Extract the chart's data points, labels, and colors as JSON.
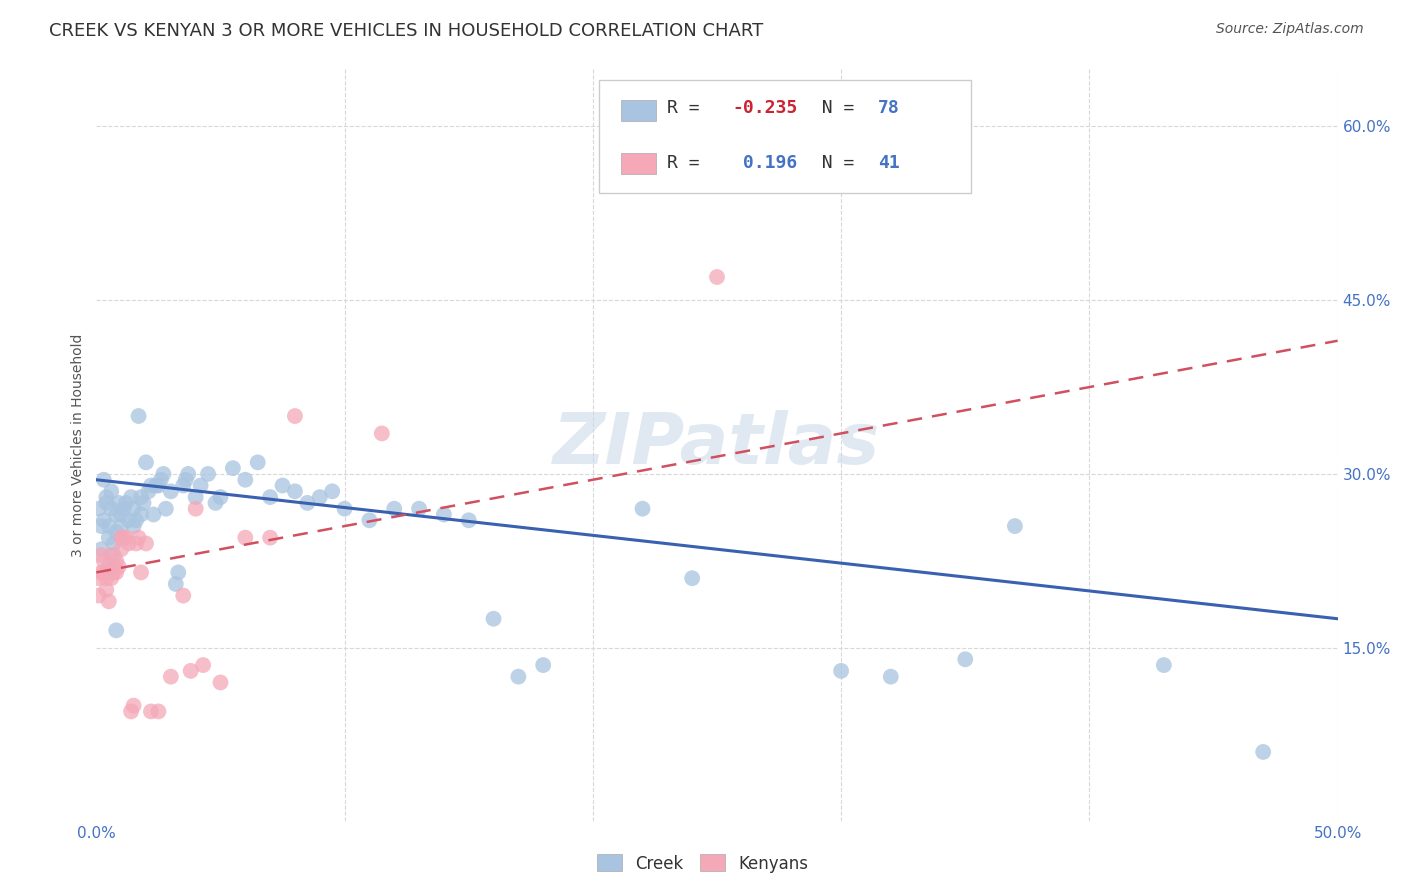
{
  "title": "CREEK VS KENYAN 3 OR MORE VEHICLES IN HOUSEHOLD CORRELATION CHART",
  "source": "Source: ZipAtlas.com",
  "ylabel": "3 or more Vehicles in Household",
  "xlim": [
    0.0,
    0.5
  ],
  "ylim": [
    0.0,
    0.65
  ],
  "xticks": [
    0.0,
    0.1,
    0.2,
    0.3,
    0.4,
    0.5
  ],
  "yticks": [
    0.15,
    0.3,
    0.45,
    0.6
  ],
  "xticklabels": [
    "0.0%",
    "",
    "",
    "",
    "",
    "50.0%"
  ],
  "yticklabels": [
    "15.0%",
    "30.0%",
    "45.0%",
    "60.0%"
  ],
  "creek_color": "#a8c4e0",
  "kenyan_color": "#f4a8b8",
  "creek_line_color": "#3a60b0",
  "kenyan_line_color": "#d05060",
  "creek_R": -0.235,
  "creek_N": 78,
  "kenyan_R": 0.196,
  "kenyan_N": 41,
  "background_color": "#ffffff",
  "grid_color": "#d8d8d8",
  "creek_line_start_y": 0.295,
  "creek_line_end_y": 0.175,
  "kenyan_line_start_y": 0.215,
  "kenyan_line_end_y": 0.415,
  "creek_x": [
    0.001,
    0.002,
    0.002,
    0.003,
    0.004,
    0.005,
    0.005,
    0.005,
    0.006,
    0.007,
    0.007,
    0.008,
    0.008,
    0.009,
    0.01,
    0.01,
    0.01,
    0.011,
    0.012,
    0.013,
    0.014,
    0.015,
    0.015,
    0.016,
    0.017,
    0.018,
    0.018,
    0.019,
    0.02,
    0.021,
    0.022,
    0.023,
    0.024,
    0.025,
    0.026,
    0.027,
    0.028,
    0.03,
    0.032,
    0.033,
    0.035,
    0.036,
    0.037,
    0.04,
    0.042,
    0.045,
    0.048,
    0.05,
    0.055,
    0.06,
    0.065,
    0.07,
    0.075,
    0.08,
    0.085,
    0.09,
    0.095,
    0.1,
    0.11,
    0.12,
    0.13,
    0.14,
    0.15,
    0.16,
    0.17,
    0.18,
    0.22,
    0.24,
    0.3,
    0.32,
    0.35,
    0.37,
    0.43,
    0.47,
    0.003,
    0.004,
    0.006,
    0.008
  ],
  "creek_y": [
    0.27,
    0.255,
    0.235,
    0.26,
    0.28,
    0.22,
    0.245,
    0.255,
    0.27,
    0.23,
    0.24,
    0.25,
    0.265,
    0.275,
    0.245,
    0.255,
    0.265,
    0.27,
    0.275,
    0.26,
    0.28,
    0.27,
    0.255,
    0.26,
    0.35,
    0.265,
    0.28,
    0.275,
    0.31,
    0.285,
    0.29,
    0.265,
    0.29,
    0.29,
    0.295,
    0.3,
    0.27,
    0.285,
    0.205,
    0.215,
    0.29,
    0.295,
    0.3,
    0.28,
    0.29,
    0.3,
    0.275,
    0.28,
    0.305,
    0.295,
    0.31,
    0.28,
    0.29,
    0.285,
    0.275,
    0.28,
    0.285,
    0.27,
    0.26,
    0.27,
    0.27,
    0.265,
    0.26,
    0.175,
    0.125,
    0.135,
    0.27,
    0.21,
    0.13,
    0.125,
    0.14,
    0.255,
    0.135,
    0.06,
    0.295,
    0.275,
    0.285,
    0.165
  ],
  "kenyan_x": [
    0.001,
    0.001,
    0.002,
    0.002,
    0.003,
    0.003,
    0.004,
    0.004,
    0.005,
    0.005,
    0.006,
    0.006,
    0.007,
    0.007,
    0.008,
    0.008,
    0.009,
    0.01,
    0.01,
    0.011,
    0.012,
    0.013,
    0.014,
    0.015,
    0.016,
    0.017,
    0.018,
    0.02,
    0.022,
    0.025,
    0.03,
    0.035,
    0.038,
    0.04,
    0.043,
    0.05,
    0.06,
    0.07,
    0.08,
    0.115,
    0.25
  ],
  "kenyan_y": [
    0.21,
    0.195,
    0.215,
    0.23,
    0.225,
    0.215,
    0.2,
    0.21,
    0.19,
    0.215,
    0.21,
    0.23,
    0.215,
    0.22,
    0.225,
    0.215,
    0.22,
    0.235,
    0.245,
    0.245,
    0.245,
    0.24,
    0.095,
    0.1,
    0.24,
    0.245,
    0.215,
    0.24,
    0.095,
    0.095,
    0.125,
    0.195,
    0.13,
    0.27,
    0.135,
    0.12,
    0.245,
    0.245,
    0.35,
    0.335,
    0.47
  ],
  "watermark": "ZIPatlas",
  "title_fontsize": 13,
  "label_fontsize": 10,
  "tick_fontsize": 11,
  "source_fontsize": 10
}
